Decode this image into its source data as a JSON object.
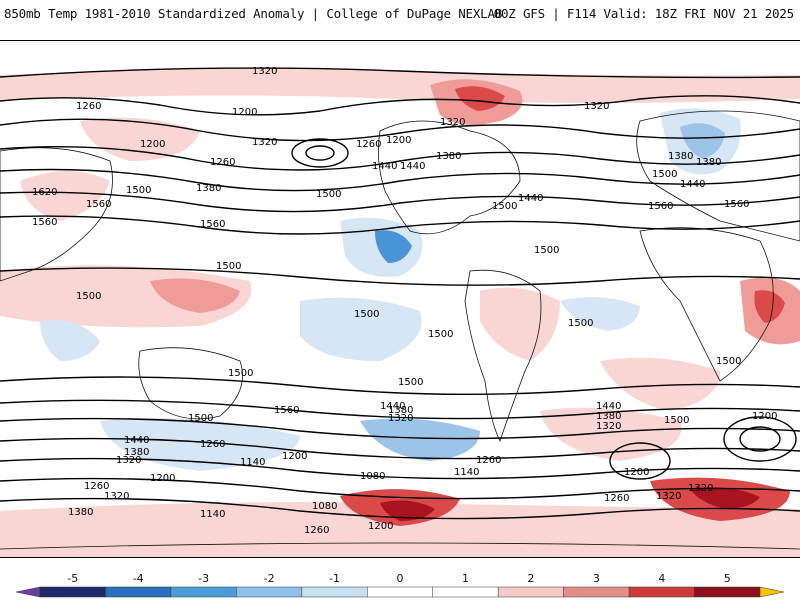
{
  "header": {
    "left_title": "850mb Temp 1981-2010 Standardized Anomaly | College of DuPage NEXLAB",
    "right_title": "00Z GFS | F114 Valid: 18Z FRI NOV 21 2025"
  },
  "map": {
    "contour_labels": {
      "l1": "1320",
      "l2": "1260",
      "l3": "1200",
      "l4": "1200",
      "l5": "1320",
      "l6": "1260",
      "l7": "1260",
      "l8": "1200",
      "l9": "1440",
      "l10": "1380",
      "l11": "1500",
      "l12": "1620",
      "l13": "1560",
      "l14": "1560",
      "l15": "1500",
      "l16": "1560",
      "l17": "1500",
      "l18": "1500",
      "l19": "1320",
      "l20": "1380",
      "l21": "1440",
      "l22": "1500",
      "l23": "1440",
      "l24": "1320",
      "l25": "1380",
      "l26": "1500",
      "l27": "1560",
      "l28": "1500",
      "l29": "1380",
      "l30": "1440",
      "l31": "1560",
      "l32": "1500",
      "l33": "1500",
      "l34": "1500",
      "l35": "1500",
      "l36": "1560",
      "l37": "1500",
      "l38": "1500",
      "l39": "1440",
      "l40": "1380",
      "l41": "1320",
      "l42": "1260",
      "l43": "1140",
      "l44": "1200",
      "l45": "1080",
      "l46": "1140",
      "l47": "1260",
      "l48": "1440",
      "l49": "1380",
      "l50": "1320",
      "l51": "1500",
      "l52": "1200",
      "l53": "1200",
      "l54": "1260",
      "l55": "1320",
      "l56": "1320",
      "l57": "1440",
      "l58": "1380",
      "l59": "1320",
      "l60": "1200",
      "l61": "1260",
      "l62": "1320",
      "l63": "1380",
      "l64": "1140",
      "l65": "1080",
      "l66": "1260",
      "l67": "1200",
      "l68": "1500"
    }
  },
  "colorbar": {
    "ticks": [
      "-5",
      "-4",
      "-3",
      "-2",
      "-1",
      "0",
      "1",
      "2",
      "3",
      "4",
      "5"
    ],
    "colors": [
      "#1e2a6e",
      "#2b6fbd",
      "#4a9bd9",
      "#8fc0e6",
      "#c7dff2",
      "#ffffff",
      "#ffffff",
      "#f7c9c6",
      "#e58c87",
      "#cc3a3a",
      "#8c0f1a"
    ],
    "end_left_color": "#6b3fa0",
    "end_right_color": "#f2c500"
  },
  "colors": {
    "warm_light": "#f9d6d4",
    "warm_mid": "#ef9c98",
    "warm_strong": "#d94a48",
    "warm_deep": "#a8141f",
    "cool_light": "#d6e6f5",
    "cool_mid": "#9cc4e8",
    "cool_strong": "#4a93d6"
  }
}
